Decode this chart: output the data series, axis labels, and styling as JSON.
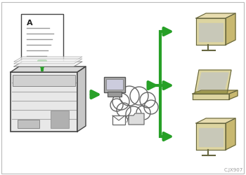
{
  "bg_color": "#ffffff",
  "border_color": "#bbbbbb",
  "arrow_color": "#27a027",
  "cloud_color": "#ffffff",
  "cloud_edge_color": "#666666",
  "caption_text": "C.JX907",
  "caption_fontsize": 5,
  "caption_color": "#999999",
  "document_color": "#ffffff",
  "document_edge_color": "#444444",
  "monitor_face_color": "#ddd5a0",
  "monitor_side_color": "#c8b870",
  "monitor_top_color": "#e8ddb0",
  "monitor_screen_color": "#c8c8b8",
  "monitor_edge_color": "#666640",
  "laptop_body_color": "#ddd5a0",
  "laptop_side_color": "#c8b870",
  "laptop_screen_color": "#c8c8b8",
  "laptop_edge_color": "#666640",
  "server_body_color": "#999999",
  "server_screen_color": "#cccccc",
  "server_edge_color": "#555555",
  "copier_color": "#e8e8e8",
  "copier_edge_color": "#444444"
}
